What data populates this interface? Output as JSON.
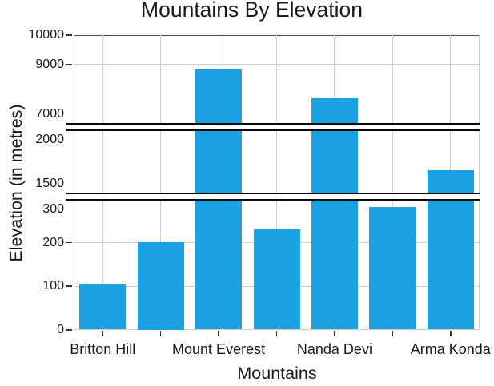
{
  "title": "Mountains By Elevation",
  "x_axis": {
    "title": "Mountains"
  },
  "y_axis": {
    "title": "Elevation (in metres)"
  },
  "chart_data": {
    "type": "bar",
    "title": "Mountains By Elevation",
    "xlabel": "Mountains",
    "ylabel": "Elevation (in metres)",
    "categories": [
      "Britton Hill",
      "",
      "Mount Everest",
      "",
      "Nanda Devi",
      "",
      "Arma Konda"
    ],
    "values": [
      105,
      200,
      8848,
      230,
      7816,
      280,
      1650
    ],
    "grid": true,
    "legend": false,
    "y_axis_breaks": [
      {
        "between": [
          300,
          1400
        ]
      },
      {
        "between": [
          2100,
          7000
        ]
      }
    ],
    "y_ticks": [
      {
        "value": 10000,
        "label": "10000",
        "dash": true,
        "grid": false
      },
      {
        "value": 9000,
        "label": "9000",
        "dash": true,
        "grid": true
      },
      {
        "value": 7000,
        "label": "7000",
        "dash": false,
        "grid": false,
        "label_offset": -10.9
      },
      {
        "value": 2000,
        "label": "2000",
        "dash": false,
        "grid": false
      },
      {
        "value": 1500,
        "label": "1500",
        "dash": false,
        "grid": false
      },
      {
        "value": 300,
        "label": "300",
        "dash": false,
        "grid": false,
        "label_offset": 13.2
      },
      {
        "value": 200,
        "label": "200",
        "dash": true,
        "grid": true
      },
      {
        "value": 100,
        "label": "100",
        "dash": true,
        "grid": true
      },
      {
        "value": 0,
        "label": "0",
        "dash": true,
        "grid": false
      }
    ]
  },
  "colors": {
    "bar": "#1BA1E2",
    "gridline": "#cdcdcd",
    "axis_line": "#cdcdcd",
    "plot_top_border": "#4a4a4a",
    "tick_mark": "#333333",
    "break_line": "#0a0a0a",
    "text": "#1a1a1a",
    "background": "#ffffff"
  }
}
